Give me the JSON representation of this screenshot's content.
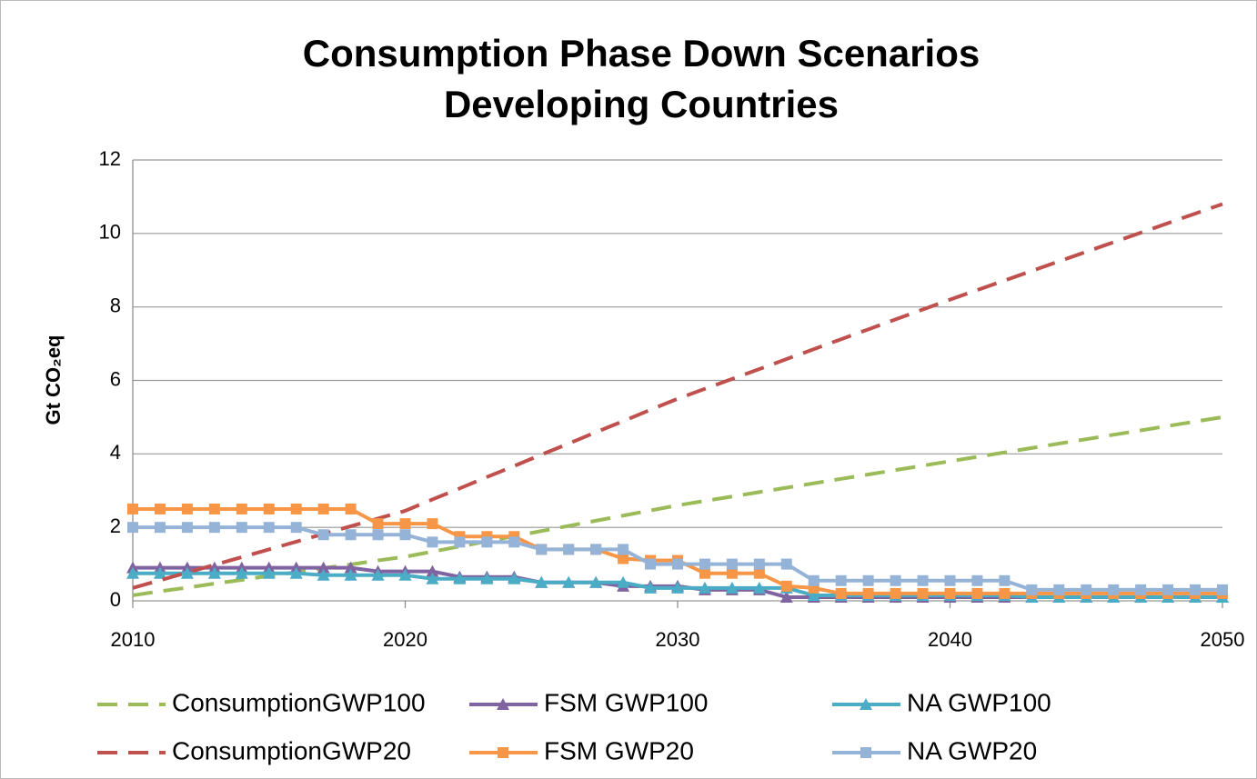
{
  "chart_data": {
    "type": "line",
    "title": "Consumption Phase Down Scenarios",
    "subtitle": "Developing Countries",
    "y_label": "Gt CO₂eq",
    "x": [
      2010,
      2011,
      2012,
      2013,
      2014,
      2015,
      2016,
      2017,
      2018,
      2019,
      2020,
      2021,
      2022,
      2023,
      2024,
      2025,
      2026,
      2027,
      2028,
      2029,
      2030,
      2031,
      2032,
      2033,
      2034,
      2035,
      2036,
      2037,
      2038,
      2039,
      2040,
      2041,
      2042,
      2043,
      2044,
      2045,
      2046,
      2047,
      2048,
      2049,
      2050
    ],
    "xlim": [
      2010,
      2050
    ],
    "xticks": [
      2010,
      2020,
      2030,
      2040,
      2050
    ],
    "ylim": [
      0,
      12
    ],
    "yticks": [
      0,
      2,
      4,
      6,
      8,
      10,
      12
    ],
    "grid": true,
    "series": [
      {
        "name": "ConsumptionGWP100",
        "color": "#9bbb59",
        "style": "dashed",
        "marker": "none",
        "values": [
          0.15,
          0.26,
          0.36,
          0.47,
          0.57,
          0.68,
          0.78,
          0.89,
          0.99,
          1.1,
          1.2,
          1.34,
          1.48,
          1.62,
          1.76,
          1.9,
          2.04,
          2.18,
          2.32,
          2.46,
          2.6,
          2.72,
          2.84,
          2.96,
          3.08,
          3.2,
          3.32,
          3.44,
          3.56,
          3.68,
          3.8,
          3.92,
          4.04,
          4.16,
          4.28,
          4.4,
          4.52,
          4.64,
          4.76,
          4.88,
          5.0
        ]
      },
      {
        "name": "FSM GWP100",
        "color": "#8064a2",
        "style": "solid",
        "marker": "triangle",
        "values": [
          0.9,
          0.9,
          0.9,
          0.9,
          0.9,
          0.9,
          0.9,
          0.9,
          0.9,
          0.8,
          0.8,
          0.8,
          0.65,
          0.65,
          0.65,
          0.5,
          0.5,
          0.5,
          0.4,
          0.4,
          0.4,
          0.3,
          0.3,
          0.3,
          0.1,
          0.1,
          0.1,
          0.1,
          0.1,
          0.1,
          0.1,
          0.1,
          0.1,
          0.1,
          0.1,
          0.1,
          0.1,
          0.1,
          0.1,
          0.1,
          0.1
        ]
      },
      {
        "name": "NA GWP100",
        "color": "#4bacc6",
        "style": "solid",
        "marker": "triangle",
        "values": [
          0.75,
          0.75,
          0.75,
          0.75,
          0.75,
          0.75,
          0.75,
          0.7,
          0.7,
          0.7,
          0.7,
          0.6,
          0.6,
          0.6,
          0.6,
          0.5,
          0.5,
          0.5,
          0.5,
          0.35,
          0.35,
          0.35,
          0.35,
          0.35,
          0.35,
          0.15,
          0.15,
          0.15,
          0.15,
          0.15,
          0.15,
          0.15,
          0.15,
          0.1,
          0.1,
          0.1,
          0.1,
          0.1,
          0.1,
          0.1,
          0.1
        ]
      },
      {
        "name": "ConsumptionGWP20",
        "color": "#c0504d",
        "style": "dashed",
        "marker": "none",
        "values": [
          0.35,
          0.56,
          0.77,
          0.98,
          1.19,
          1.4,
          1.61,
          1.82,
          2.03,
          2.24,
          2.45,
          2.76,
          3.06,
          3.37,
          3.67,
          3.98,
          4.28,
          4.59,
          4.89,
          5.2,
          5.5,
          5.77,
          6.04,
          6.31,
          6.58,
          6.85,
          7.12,
          7.39,
          7.66,
          7.93,
          8.2,
          8.46,
          8.72,
          8.98,
          9.24,
          9.5,
          9.76,
          10.02,
          10.28,
          10.54,
          10.8
        ]
      },
      {
        "name": "FSM GWP20",
        "color": "#f79646",
        "style": "solid",
        "marker": "square",
        "values": [
          2.5,
          2.5,
          2.5,
          2.5,
          2.5,
          2.5,
          2.5,
          2.5,
          2.5,
          2.1,
          2.1,
          2.1,
          1.75,
          1.75,
          1.75,
          1.4,
          1.4,
          1.4,
          1.15,
          1.1,
          1.1,
          0.75,
          0.75,
          0.75,
          0.4,
          0.35,
          0.2,
          0.2,
          0.2,
          0.2,
          0.2,
          0.2,
          0.2,
          0.2,
          0.2,
          0.2,
          0.2,
          0.2,
          0.2,
          0.2,
          0.2
        ]
      },
      {
        "name": "NA GWP20",
        "color": "#95b3d7",
        "style": "solid",
        "marker": "square",
        "values": [
          2.0,
          2.0,
          2.0,
          2.0,
          2.0,
          2.0,
          2.0,
          1.8,
          1.8,
          1.8,
          1.8,
          1.6,
          1.6,
          1.6,
          1.6,
          1.4,
          1.4,
          1.4,
          1.4,
          1.0,
          1.0,
          1.0,
          1.0,
          1.0,
          1.0,
          0.55,
          0.55,
          0.55,
          0.55,
          0.55,
          0.55,
          0.55,
          0.55,
          0.3,
          0.3,
          0.3,
          0.3,
          0.3,
          0.3,
          0.3,
          0.3
        ]
      }
    ]
  }
}
